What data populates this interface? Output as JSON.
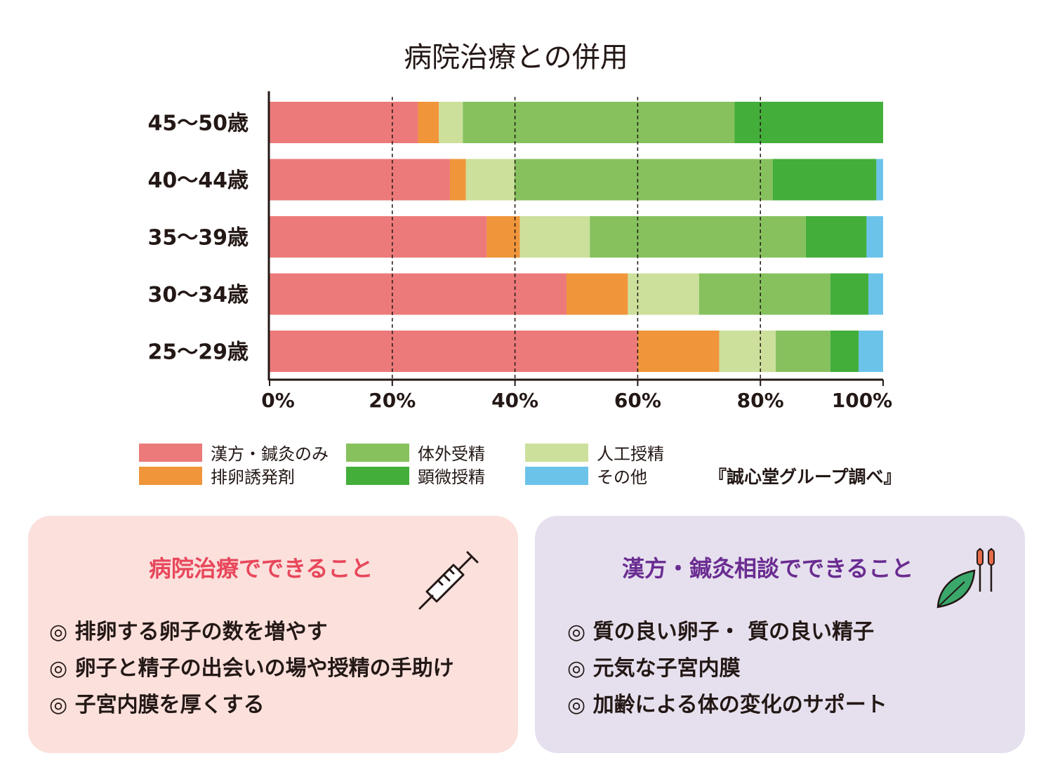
{
  "chart_data": {
    "type": "bar",
    "orientation": "horizontal",
    "stacked": true,
    "title": "病院治療との併用",
    "categories": [
      "45〜50歳",
      "40〜44歳",
      "35〜39歳",
      "30〜34歳",
      "25〜29歳"
    ],
    "series": [
      {
        "name": "漢方・鍼灸のみ",
        "color": "#ec7a7a",
        "values": [
          24.2,
          29.4,
          35.4,
          48.4,
          60.0
        ]
      },
      {
        "name": "排卵誘発剤",
        "color": "#f0953a",
        "values": [
          3.4,
          2.6,
          5.4,
          10.0,
          13.3
        ]
      },
      {
        "name": "人工授精",
        "color": "#cce09b",
        "values": [
          3.9,
          7.9,
          11.4,
          11.6,
          9.2
        ]
      },
      {
        "name": "体外受精",
        "color": "#86c15e",
        "values": [
          44.3,
          42.1,
          35.2,
          21.4,
          8.9
        ]
      },
      {
        "name": "顕微授精",
        "color": "#43ae3a",
        "values": [
          24.2,
          16.9,
          9.9,
          6.2,
          4.6
        ]
      },
      {
        "name": "その他",
        "color": "#6cc3ea",
        "values": [
          0.0,
          1.1,
          2.7,
          2.4,
          4.0
        ]
      }
    ],
    "xticks": [
      "0%",
      "20%",
      "40%",
      "60%",
      "80%",
      "100%"
    ],
    "xlim": [
      0,
      100
    ],
    "grid": "vertical dashed",
    "legend_placement": "bottom"
  },
  "source": "『誠心堂グループ調べ』",
  "panels": {
    "left": {
      "title": "病院治療でできること",
      "items": [
        "◎ 排卵する卵子の数を増やす",
        "◎ 卵子と精子の出会いの場や授精の手助け",
        "◎ 子宮内膜を厚くする"
      ],
      "icon": "syringe-icon"
    },
    "right": {
      "title": "漢方・鍼灸相談でできること",
      "items": [
        "◎ 質の良い卵子・ 質の良い精子",
        "◎ 元気な子宮内膜",
        "◎ 加齢による体の変化のサポート"
      ],
      "icon": "leaf-needle-icon"
    }
  },
  "colors": {
    "left_panel_bg": "#fbe0dc",
    "right_panel_bg": "#e6e0ee",
    "left_title": "#e8475b",
    "right_title": "#6a2c91"
  }
}
